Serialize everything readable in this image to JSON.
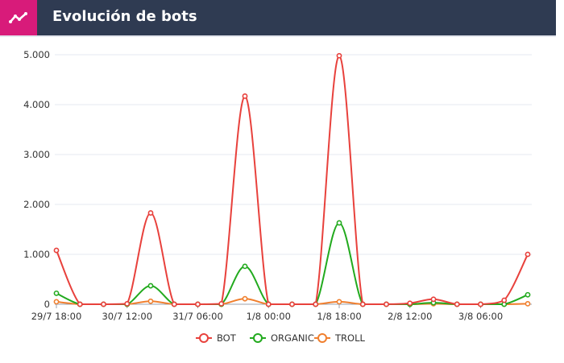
{
  "header": {
    "title": "Evolución de bots",
    "icon": "trend-line-icon"
  },
  "chart_data": {
    "type": "line",
    "title": "Evolución de bots",
    "x": [
      "29/7 18:00",
      "30/7 00:00",
      "30/7 06:00",
      "30/7 12:00",
      "30/7 18:00",
      "31/7 00:00",
      "31/7 06:00",
      "31/7 12:00",
      "31/7 18:00",
      "1/8 00:00",
      "1/8 06:00",
      "1/8 12:00",
      "1/8 18:00",
      "2/8 00:00",
      "2/8 06:00",
      "2/8 12:00",
      "2/8 18:00",
      "3/8 00:00",
      "3/8 06:00",
      "3/8 12:00",
      "3/8 18:00"
    ],
    "x_tick_labels": [
      "29/7 18:00",
      "30/7 12:00",
      "31/7 06:00",
      "1/8 00:00",
      "1/8 18:00",
      "2/8 12:00",
      "3/8 06:00"
    ],
    "y_tick_labels": [
      "0",
      "1.000",
      "2.000",
      "3.000",
      "4.000",
      "5.000"
    ],
    "ylim": [
      0,
      5000
    ],
    "grid": true,
    "legend_position": "bottom",
    "series": [
      {
        "name": "BOT",
        "color": "#e8413c",
        "values": [
          1080,
          0,
          0,
          10,
          1830,
          0,
          0,
          10,
          4170,
          0,
          0,
          0,
          4980,
          0,
          0,
          20,
          100,
          0,
          0,
          80,
          1000
        ]
      },
      {
        "name": "ORGANIC",
        "color": "#22aa1e",
        "values": [
          220,
          0,
          0,
          0,
          370,
          0,
          0,
          0,
          760,
          0,
          0,
          0,
          1630,
          0,
          0,
          0,
          30,
          0,
          0,
          0,
          190
        ]
      },
      {
        "name": "TROLL",
        "color": "#f07f2e",
        "values": [
          50,
          0,
          0,
          0,
          60,
          0,
          0,
          0,
          110,
          0,
          0,
          0,
          50,
          0,
          0,
          0,
          10,
          0,
          0,
          0,
          10
        ]
      }
    ]
  }
}
